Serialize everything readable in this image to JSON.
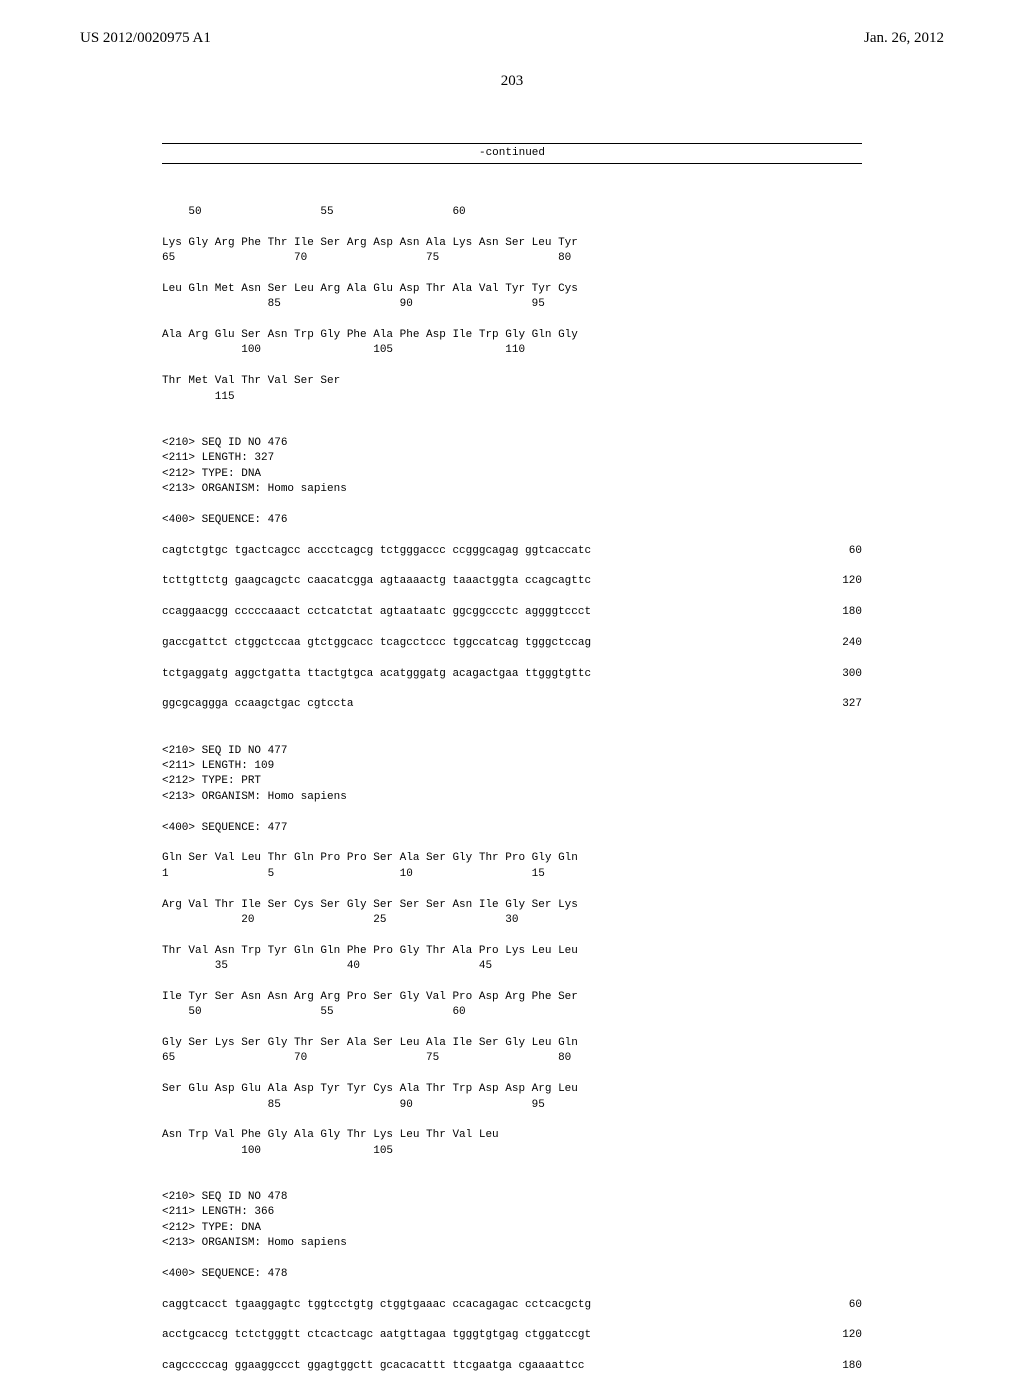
{
  "header": {
    "left": "US 2012/0020975 A1",
    "right": "Jan. 26, 2012"
  },
  "page_number": "203",
  "continued_label": "-continued",
  "blocks": [
    {
      "type": "aa",
      "lines": [
        "    50                  55                  60",
        "",
        "Lys Gly Arg Phe Thr Ile Ser Arg Asp Asn Ala Lys Asn Ser Leu Tyr",
        "65                  70                  75                  80",
        "",
        "Leu Gln Met Asn Ser Leu Arg Ala Glu Asp Thr Ala Val Tyr Tyr Cys",
        "                85                  90                  95",
        "",
        "Ala Arg Glu Ser Asn Trp Gly Phe Ala Phe Asp Ile Trp Gly Gln Gly",
        "            100                 105                 110",
        "",
        "Thr Met Val Thr Val Ser Ser",
        "        115"
      ]
    },
    {
      "type": "header",
      "lines": [
        "",
        "",
        "<210> SEQ ID NO 476",
        "<211> LENGTH: 327",
        "<212> TYPE: DNA",
        "<213> ORGANISM: Homo sapiens",
        "",
        "<400> SEQUENCE: 476",
        ""
      ]
    },
    {
      "type": "dna",
      "rows": [
        {
          "seq": "cagtctgtgc tgactcagcc accctcagcg tctgggaccc ccgggcagag ggtcaccatc",
          "pos": "60"
        },
        {
          "seq": "tcttgttctg gaagcagctc caacatcgga agtaaaactg taaactggta ccagcagttc",
          "pos": "120"
        },
        {
          "seq": "ccaggaacgg cccccaaact cctcatctat agtaataatc ggcggccctc aggggtccct",
          "pos": "180"
        },
        {
          "seq": "gaccgattct ctggctccaa gtctggcacc tcagcctccc tggccatcag tgggctccag",
          "pos": "240"
        },
        {
          "seq": "tctgaggatg aggctgatta ttactgtgca acatgggatg acagactgaa ttgggtgttc",
          "pos": "300"
        },
        {
          "seq": "ggcgcaggga ccaagctgac cgtccta",
          "pos": "327"
        }
      ]
    },
    {
      "type": "header",
      "lines": [
        "",
        "",
        "<210> SEQ ID NO 477",
        "<211> LENGTH: 109",
        "<212> TYPE: PRT",
        "<213> ORGANISM: Homo sapiens",
        "",
        "<400> SEQUENCE: 477",
        ""
      ]
    },
    {
      "type": "aa",
      "lines": [
        "Gln Ser Val Leu Thr Gln Pro Pro Ser Ala Ser Gly Thr Pro Gly Gln",
        "1               5                   10                  15",
        "",
        "Arg Val Thr Ile Ser Cys Ser Gly Ser Ser Ser Asn Ile Gly Ser Lys",
        "            20                  25                  30",
        "",
        "Thr Val Asn Trp Tyr Gln Gln Phe Pro Gly Thr Ala Pro Lys Leu Leu",
        "        35                  40                  45",
        "",
        "Ile Tyr Ser Asn Asn Arg Arg Pro Ser Gly Val Pro Asp Arg Phe Ser",
        "    50                  55                  60",
        "",
        "Gly Ser Lys Ser Gly Thr Ser Ala Ser Leu Ala Ile Ser Gly Leu Gln",
        "65                  70                  75                  80",
        "",
        "Ser Glu Asp Glu Ala Asp Tyr Tyr Cys Ala Thr Trp Asp Asp Arg Leu",
        "                85                  90                  95",
        "",
        "Asn Trp Val Phe Gly Ala Gly Thr Lys Leu Thr Val Leu",
        "            100                 105"
      ]
    },
    {
      "type": "header",
      "lines": [
        "",
        "",
        "<210> SEQ ID NO 478",
        "<211> LENGTH: 366",
        "<212> TYPE: DNA",
        "<213> ORGANISM: Homo sapiens",
        "",
        "<400> SEQUENCE: 478",
        ""
      ]
    },
    {
      "type": "dna",
      "rows": [
        {
          "seq": "caggtcacct tgaaggagtc tggtcctgtg ctggtgaaac ccacagagac cctcacgctg",
          "pos": "60"
        },
        {
          "seq": "acctgcaccg tctctgggtt ctcactcagc aatgttagaa tgggtgtgag ctggatccgt",
          "pos": "120"
        },
        {
          "seq": "cagcccccag ggaaggccct ggagtggctt gcacacattt ttcgaatga cgaaaattcc",
          "pos": "180"
        }
      ]
    }
  ]
}
